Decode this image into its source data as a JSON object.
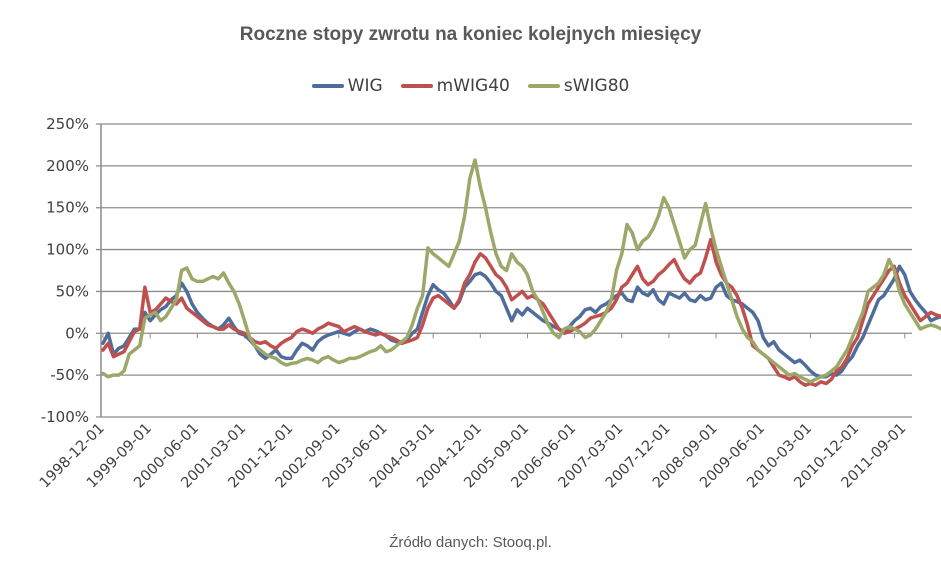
{
  "chart_data": {
    "type": "line",
    "title": "Roczne stopy zwrotu na koniec kolejnych miesięcy",
    "xlabel": "",
    "ylabel": "",
    "ylim": [
      -100,
      250
    ],
    "yticks": [
      -100,
      -50,
      0,
      50,
      100,
      150,
      200,
      250
    ],
    "ytick_labels": [
      "-100%",
      "-50%",
      "0%",
      "50%",
      "100%",
      "150%",
      "200%",
      "250%"
    ],
    "xtick_labels": [
      "1998-12-01",
      "1999-09-01",
      "2000-06-01",
      "2001-03-01",
      "2001-12-01",
      "2002-09-01",
      "2003-06-01",
      "2004-03-01",
      "2004-12-01",
      "2005-09-01",
      "2006-06-01",
      "2007-03-01",
      "2007-12-01",
      "2008-09-01",
      "2009-06-01",
      "2010-03-01",
      "2010-12-01",
      "2011-09-01"
    ],
    "x_start": "1998-12-01",
    "x_step": "1 month",
    "grid": true,
    "legend_position": "top",
    "source": "Źródło danych: Stooq.pl.",
    "series": [
      {
        "name": "WIG",
        "color": "#4F6D9A",
        "values": [
          -12,
          0,
          -25,
          -18,
          -15,
          -5,
          5,
          5,
          25,
          15,
          22,
          28,
          32,
          40,
          45,
          60,
          50,
          35,
          25,
          18,
          12,
          8,
          5,
          10,
          18,
          8,
          0,
          -2,
          -8,
          -15,
          -25,
          -30,
          -25,
          -20,
          -28,
          -30,
          -30,
          -20,
          -12,
          -15,
          -20,
          -10,
          -5,
          -2,
          0,
          2,
          0,
          -2,
          2,
          5,
          2,
          5,
          3,
          0,
          -3,
          -8,
          -10,
          -10,
          -8,
          0,
          5,
          25,
          45,
          58,
          52,
          48,
          40,
          30,
          38,
          55,
          62,
          70,
          72,
          68,
          60,
          50,
          45,
          30,
          15,
          28,
          22,
          30,
          25,
          20,
          15,
          12,
          8,
          5,
          2,
          8,
          15,
          20,
          28,
          30,
          25,
          32,
          35,
          40,
          45,
          48,
          40,
          38,
          55,
          48,
          45,
          52,
          40,
          35,
          48,
          45,
          42,
          48,
          40,
          38,
          45,
          40,
          42,
          55,
          60,
          45,
          40,
          38,
          35,
          30,
          25,
          15,
          -5,
          -15,
          -10,
          -20,
          -25,
          -30,
          -35,
          -32,
          -38,
          -45,
          -50,
          -52,
          -52,
          -48,
          -50,
          -45,
          -35,
          -28,
          -15,
          -5,
          10,
          25,
          40,
          45,
          55,
          65,
          80,
          70,
          50,
          40,
          32,
          25,
          15,
          18,
          20,
          22,
          18,
          20,
          22,
          18,
          15,
          20,
          22,
          15,
          8,
          -5,
          -12
        ]
      },
      {
        "name": "mWIG40",
        "color": "#C0504D",
        "values": [
          -20,
          -12,
          -28,
          -25,
          -22,
          -10,
          2,
          5,
          55,
          25,
          28,
          35,
          42,
          38,
          35,
          42,
          30,
          25,
          20,
          15,
          10,
          8,
          5,
          5,
          10,
          5,
          2,
          0,
          -5,
          -10,
          -12,
          -10,
          -15,
          -18,
          -12,
          -8,
          -5,
          2,
          5,
          3,
          0,
          5,
          8,
          12,
          10,
          8,
          2,
          5,
          8,
          5,
          2,
          0,
          -2,
          0,
          -3,
          -5,
          -8,
          -12,
          -10,
          -8,
          -5,
          10,
          30,
          42,
          45,
          40,
          35,
          30,
          40,
          60,
          70,
          85,
          95,
          90,
          80,
          70,
          65,
          55,
          40,
          45,
          50,
          42,
          45,
          40,
          35,
          25,
          15,
          5,
          0,
          2,
          5,
          8,
          12,
          18,
          20,
          22,
          25,
          30,
          40,
          55,
          60,
          70,
          80,
          65,
          58,
          62,
          70,
          75,
          82,
          88,
          75,
          65,
          60,
          68,
          72,
          90,
          112,
          85,
          70,
          60,
          55,
          45,
          30,
          10,
          -15,
          -20,
          -25,
          -30,
          -40,
          -50,
          -52,
          -55,
          -52,
          -58,
          -62,
          -60,
          -62,
          -58,
          -60,
          -55,
          -45,
          -40,
          -30,
          -15,
          -5,
          15,
          35,
          45,
          55,
          65,
          75,
          80,
          60,
          45,
          35,
          25,
          15,
          20,
          25,
          22,
          20,
          18,
          25,
          20,
          18,
          15,
          20,
          22,
          10,
          0,
          -15,
          -20
        ]
      },
      {
        "name": "sWIG80",
        "color": "#9BA869",
        "values": [
          -48,
          -52,
          -50,
          -50,
          -45,
          -25,
          -20,
          -15,
          18,
          22,
          25,
          15,
          20,
          30,
          40,
          75,
          78,
          65,
          62,
          62,
          65,
          68,
          65,
          72,
          60,
          50,
          35,
          15,
          -5,
          -15,
          -20,
          -25,
          -28,
          -30,
          -35,
          -38,
          -36,
          -35,
          -32,
          -30,
          -32,
          -35,
          -30,
          -28,
          -32,
          -35,
          -33,
          -30,
          -30,
          -28,
          -25,
          -22,
          -20,
          -15,
          -22,
          -20,
          -15,
          -10,
          -5,
          10,
          30,
          45,
          102,
          95,
          90,
          85,
          80,
          95,
          110,
          140,
          185,
          207,
          175,
          150,
          120,
          95,
          80,
          75,
          95,
          85,
          80,
          70,
          50,
          40,
          25,
          10,
          0,
          -5,
          5,
          8,
          5,
          2,
          -5,
          -2,
          5,
          15,
          25,
          40,
          75,
          95,
          130,
          120,
          100,
          110,
          115,
          125,
          140,
          162,
          150,
          130,
          110,
          90,
          100,
          105,
          130,
          155,
          125,
          100,
          80,
          60,
          40,
          20,
          5,
          -5,
          -10,
          -20,
          -25,
          -30,
          -35,
          -40,
          -45,
          -50,
          -48,
          -52,
          -55,
          -58,
          -55,
          -52,
          -50,
          -45,
          -40,
          -30,
          -20,
          -5,
          10,
          25,
          50,
          55,
          60,
          70,
          88,
          75,
          50,
          35,
          25,
          15,
          5,
          8,
          10,
          8,
          5,
          10,
          8,
          5,
          8,
          10,
          5,
          0,
          -10,
          -25,
          -20
        ]
      }
    ]
  }
}
